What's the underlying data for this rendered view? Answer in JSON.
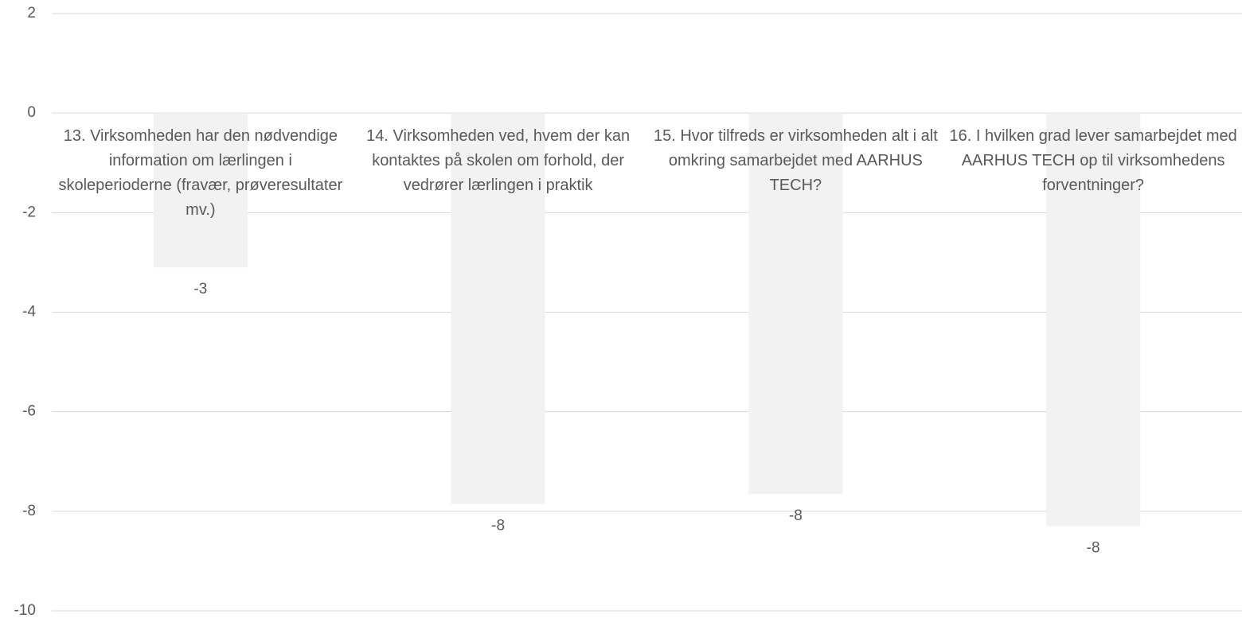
{
  "chart_data": {
    "type": "bar",
    "categories": [
      "13. Virksomheden har den nødvendige information om lærlingen i skoleperioderne (fravær, prøveresultater mv.)",
      "14. Virksomheden ved, hvem der kan kontaktes på skolen om forhold, der vedrører lærlingen i praktik",
      "15. Hvor tilfreds er virksomheden alt i alt omkring samarbejdet med AARHUS TECH?",
      "16. I hvilken grad lever samarbejdet med AARHUS TECH op til virksomhedens forventninger?"
    ],
    "values": [
      -3.1,
      -7.85,
      -7.65,
      -8.3
    ],
    "value_labels": [
      "-3",
      "-8",
      "-8",
      "-8"
    ],
    "color": "#f2f2f2",
    "ylim": [
      -10,
      2
    ],
    "yticks": [
      -10,
      -8,
      -6,
      -4,
      -2,
      0,
      2
    ],
    "grid": true
  }
}
